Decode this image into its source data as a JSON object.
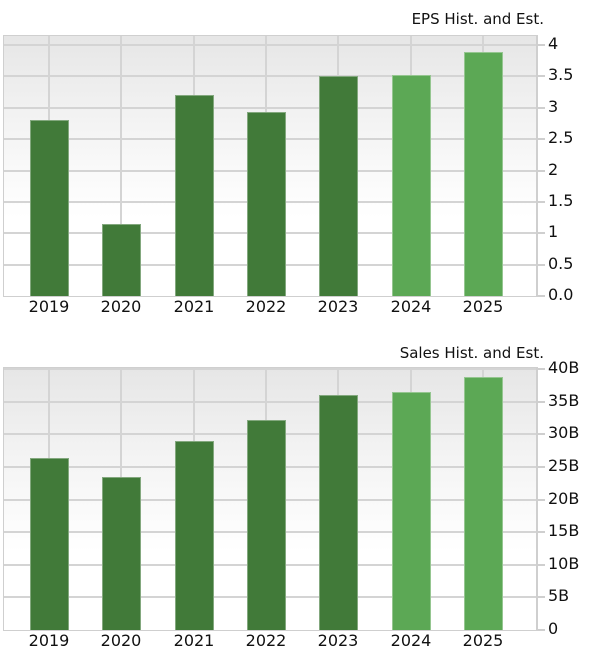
{
  "chart_data": [
    {
      "type": "bar",
      "title": "EPS Hist. and Est.",
      "xlabel": "",
      "ylabel": "",
      "categories": [
        "2019",
        "2020",
        "2021",
        "2022",
        "2023",
        "2024",
        "2025"
      ],
      "values": [
        2.8,
        1.15,
        3.2,
        2.93,
        3.5,
        3.52,
        3.89
      ],
      "kind": [
        "historical",
        "historical",
        "historical",
        "historical",
        "historical",
        "estimate",
        "estimate"
      ],
      "ylim": [
        0,
        4.15
      ],
      "yticks": [
        "0.0",
        "0.5",
        "1",
        "1.5",
        "2",
        "2.5",
        "3",
        "3.5",
        "4"
      ],
      "ytick_values": [
        0,
        0.5,
        1,
        1.5,
        2,
        2.5,
        3,
        3.5,
        4
      ],
      "grid": true,
      "y_axis_position": "right",
      "colors": {
        "historical": "#417A39",
        "estimate": "#5CA855"
      }
    },
    {
      "type": "bar",
      "title": "Sales Hist. and Est.",
      "xlabel": "",
      "ylabel": "",
      "categories": [
        "2019",
        "2020",
        "2021",
        "2022",
        "2023",
        "2024",
        "2025"
      ],
      "values": [
        26.4,
        23.4,
        29.0,
        32.2,
        36.0,
        36.5,
        38.8
      ],
      "value_units": "B",
      "kind": [
        "historical",
        "historical",
        "historical",
        "historical",
        "historical",
        "estimate",
        "estimate"
      ],
      "ylim": [
        0,
        40.4
      ],
      "yticks": [
        "0",
        "5B",
        "10B",
        "15B",
        "20B",
        "25B",
        "30B",
        "35B",
        "40B"
      ],
      "ytick_values": [
        0,
        5,
        10,
        15,
        20,
        25,
        30,
        35,
        40
      ],
      "grid": true,
      "y_axis_position": "right",
      "colors": {
        "historical": "#417A39",
        "estimate": "#5CA855"
      }
    }
  ]
}
